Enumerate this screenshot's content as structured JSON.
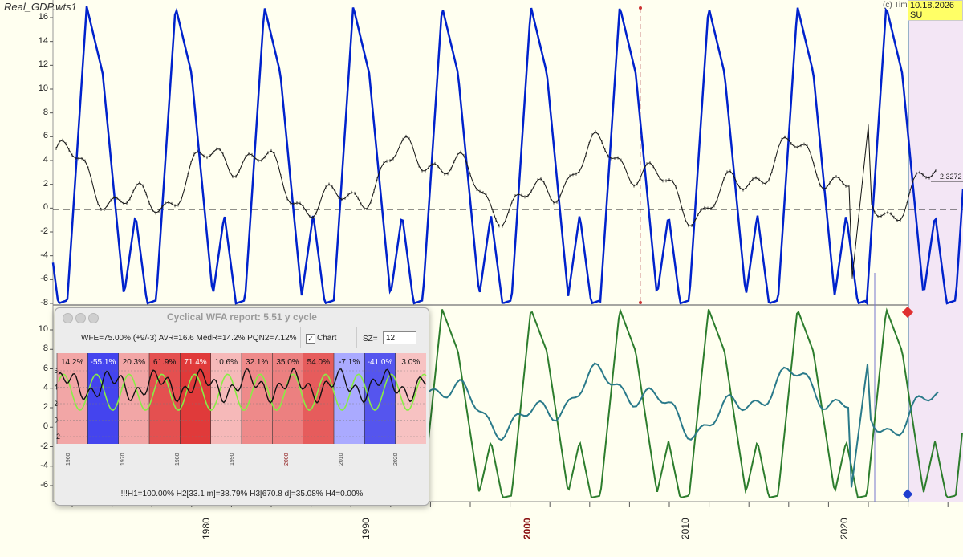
{
  "window": {
    "file_title": "Real_GDP.wts1",
    "copyright": "(c) Timir",
    "date_badge": "10.18.2026 SU",
    "value_tag": "2.3272"
  },
  "top_panel": {
    "y_ticks": [
      "16",
      "14",
      "12",
      "10",
      "8",
      "6",
      "4",
      "2",
      "0",
      "-2",
      "-4",
      "-6",
      "-8"
    ],
    "cycle_color": "#0022cc",
    "series_color": "#111111"
  },
  "bottom_panel": {
    "y_ticks": [
      "10",
      "8",
      "6",
      "4",
      "2",
      "0",
      "-2",
      "-4",
      "-6"
    ],
    "cycle_color": "#2d7d2d",
    "series_color": "#2a7a8a"
  },
  "x_axis": {
    "labels": [
      {
        "text": "1980",
        "highlight": false
      },
      {
        "text": "1990",
        "highlight": false
      },
      {
        "text": "2000",
        "highlight": true
      },
      {
        "text": "2010",
        "highlight": false
      },
      {
        "text": "2020",
        "highlight": false
      }
    ]
  },
  "dialog": {
    "title": "Cyclical WFA report:  5.51 y cycle",
    "metrics": "WFE=75.00% (+9/-3) AvR=16.6 MedR=14.2% PQN2=7.12%",
    "chart_checkbox_label": "Chart",
    "chart_checked": "✓",
    "sz_label": "SZ=",
    "sz_value": "12",
    "footer": "!!!H1=100.00% H2[33.1 m]=38.79% H3[670.8 d]=35.08% H4=0.00%",
    "segments": [
      {
        "label": "14.2%",
        "color": "#f2a6a6",
        "text_color": "#111"
      },
      {
        "label": "-55.1%",
        "color": "#4444ee",
        "text_color": "#fff"
      },
      {
        "label": "20.3%",
        "color": "#f2a6a6",
        "text_color": "#111"
      },
      {
        "label": "61.9%",
        "color": "#e45050",
        "text_color": "#111"
      },
      {
        "label": "71.4%",
        "color": "#e03a3a",
        "text_color": "#fff"
      },
      {
        "label": "10.6%",
        "color": "#f6b9b9",
        "text_color": "#111"
      },
      {
        "label": "32.1%",
        "color": "#ee8a8a",
        "text_color": "#111"
      },
      {
        "label": "35.0%",
        "color": "#ec8080",
        "text_color": "#111"
      },
      {
        "label": "54.0%",
        "color": "#e65c5c",
        "text_color": "#111"
      },
      {
        "label": "-7.1%",
        "color": "#aaaaff",
        "text_color": "#111"
      },
      {
        "label": "-41.0%",
        "color": "#5555ee",
        "text_color": "#fff"
      },
      {
        "label": "3.0%",
        "color": "#f7c2c2",
        "text_color": "#111"
      }
    ],
    "mini_y_ticks": [
      "6",
      "4",
      "2",
      "0",
      "-2"
    ],
    "mini_x_ticks": [
      "1960",
      "1970",
      "1980",
      "1990",
      "2000",
      "2010",
      "2020"
    ],
    "mini_line_dark": "#111111",
    "mini_line_green": "#88ee44"
  }
}
